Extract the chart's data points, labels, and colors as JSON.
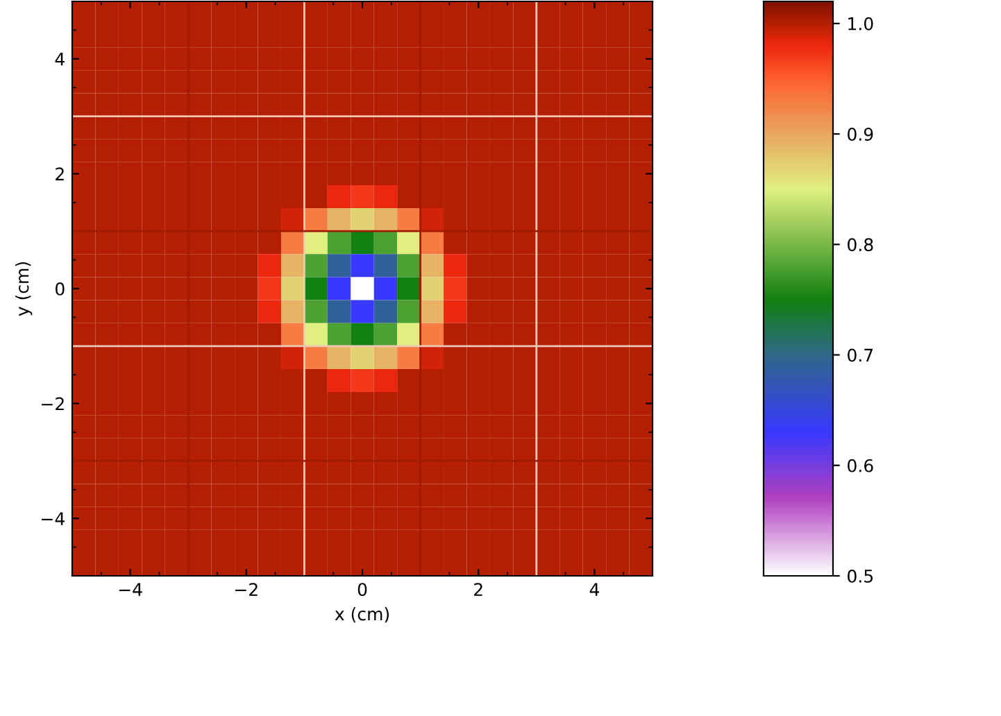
{
  "chart_data": {
    "type": "heatmap",
    "xlabel": "x (cm)",
    "ylabel": "y (cm)",
    "x": [
      -4.8,
      -4.4,
      -4.0,
      -3.6,
      -3.2,
      -2.8,
      -2.4,
      -2.0,
      -1.6,
      -1.2,
      -0.8,
      -0.4,
      0,
      0.4,
      0.8,
      1.2,
      1.6,
      2.0,
      2.4,
      2.8,
      3.2,
      3.6,
      4.0,
      4.4,
      4.8
    ],
    "y": [
      4.8,
      4.4,
      4.0,
      3.6,
      3.2,
      2.8,
      2.4,
      2.0,
      1.6,
      1.2,
      0.8,
      0.4,
      0,
      -0.4,
      -0.8,
      -1.2,
      -1.6,
      -2.0,
      -2.4,
      -2.8,
      -3.2,
      -3.6,
      -4.0,
      -4.4,
      -4.8
    ],
    "xlim": [
      -5,
      5
    ],
    "ylim": [
      -5,
      5
    ],
    "xticks": [
      {
        "value": -4,
        "label": "−4"
      },
      {
        "value": -2,
        "label": "−2"
      },
      0,
      2,
      4
    ],
    "yticks": [
      {
        "value": -4,
        "label": "−4"
      },
      {
        "value": -2,
        "label": "−2"
      },
      0,
      2,
      4
    ],
    "clim": [
      0.5,
      1.02
    ],
    "cticks": [
      0.5,
      0.6,
      0.7,
      0.8,
      0.9,
      {
        "value": 1.0,
        "label": "1.0"
      }
    ],
    "ref_lines": [
      {
        "axis": "x",
        "value": -3,
        "color": "#a01c00"
      },
      {
        "axis": "x",
        "value": -1,
        "color": "#f0c8b8"
      },
      {
        "axis": "x",
        "value": 1,
        "color": "#a01c00"
      },
      {
        "axis": "x",
        "value": 3,
        "color": "#f0c8b8"
      },
      {
        "axis": "y",
        "value": 3,
        "color": "#f0c8b8"
      },
      {
        "axis": "y",
        "value": 1,
        "color": "#a01c00"
      },
      {
        "axis": "y",
        "value": -1,
        "color": "#f0c8b8"
      },
      {
        "axis": "y",
        "value": -3,
        "color": "#a01c00"
      }
    ],
    "cells": [
      [
        1,
        1,
        1,
        1,
        1,
        1,
        1,
        1,
        1,
        1,
        1,
        1,
        1,
        1,
        1,
        1,
        1,
        1,
        1,
        1,
        1,
        1,
        1,
        1,
        1
      ],
      [
        1,
        1,
        1,
        1,
        1,
        1,
        1,
        1,
        1,
        1,
        1,
        1,
        1,
        1,
        1,
        1,
        1,
        1,
        1,
        1,
        1,
        1,
        1,
        1,
        1
      ],
      [
        1,
        1,
        1,
        1,
        1,
        1,
        1,
        1,
        1,
        1,
        1,
        1,
        1,
        1,
        1,
        1,
        1,
        1,
        1,
        1,
        1,
        1,
        1,
        1,
        1
      ],
      [
        1,
        1,
        1,
        1,
        1,
        1,
        1,
        1,
        1,
        1,
        1,
        1,
        1,
        1,
        1,
        1,
        1,
        1,
        1,
        1,
        1,
        1,
        1,
        1,
        1
      ],
      [
        1,
        1,
        1,
        1,
        1,
        1,
        1,
        1,
        1,
        1,
        1,
        1,
        1,
        1,
        1,
        1,
        1,
        1,
        1,
        1,
        1,
        1,
        1,
        1,
        1
      ],
      [
        1,
        1,
        1,
        1,
        1,
        1,
        1,
        1,
        1,
        1,
        1,
        1,
        1,
        1,
        1,
        1,
        1,
        1,
        1,
        1,
        1,
        1,
        1,
        1,
        1
      ],
      [
        1,
        1,
        1,
        1,
        1,
        1,
        1,
        1,
        1,
        1,
        1,
        1,
        1,
        1,
        1,
        1,
        1,
        1,
        1,
        1,
        1,
        1,
        1,
        1,
        1
      ],
      [
        1,
        1,
        1,
        1,
        1,
        1,
        1,
        1,
        1,
        1,
        1,
        1,
        1,
        1,
        1,
        1,
        1,
        1,
        1,
        1,
        1,
        1,
        1,
        1,
        1
      ],
      [
        1,
        1,
        1,
        1,
        1,
        1,
        1,
        1,
        1,
        1,
        1,
        0.98,
        0.97,
        0.98,
        1,
        1,
        1,
        1,
        1,
        1,
        1,
        1,
        1,
        1,
        1
      ],
      [
        1,
        1,
        1,
        1,
        1,
        1,
        1,
        1,
        1,
        0.99,
        0.93,
        0.89,
        0.87,
        0.89,
        0.93,
        0.99,
        1,
        1,
        1,
        1,
        1,
        1,
        1,
        1,
        1
      ],
      [
        1,
        1,
        1,
        1,
        1,
        1,
        1,
        1,
        1,
        0.93,
        0.85,
        0.78,
        0.75,
        0.78,
        0.85,
        0.93,
        1,
        1,
        1,
        1,
        1,
        1,
        1,
        1,
        1
      ],
      [
        1,
        1,
        1,
        1,
        1,
        1,
        1,
        1,
        0.98,
        0.89,
        0.78,
        0.69,
        0.63,
        0.69,
        0.78,
        0.89,
        0.98,
        1,
        1,
        1,
        1,
        1,
        1,
        1,
        1
      ],
      [
        1,
        1,
        1,
        1,
        1,
        1,
        1,
        1,
        0.97,
        0.87,
        0.75,
        0.63,
        0.5,
        0.63,
        0.75,
        0.87,
        0.97,
        1,
        1,
        1,
        1,
        1,
        1,
        1,
        1
      ],
      [
        1,
        1,
        1,
        1,
        1,
        1,
        1,
        1,
        0.98,
        0.89,
        0.78,
        0.69,
        0.63,
        0.69,
        0.78,
        0.89,
        0.98,
        1,
        1,
        1,
        1,
        1,
        1,
        1,
        1
      ],
      [
        1,
        1,
        1,
        1,
        1,
        1,
        1,
        1,
        1,
        0.93,
        0.85,
        0.78,
        0.75,
        0.78,
        0.85,
        0.93,
        1,
        1,
        1,
        1,
        1,
        1,
        1,
        1,
        1
      ],
      [
        1,
        1,
        1,
        1,
        1,
        1,
        1,
        1,
        1,
        0.99,
        0.93,
        0.89,
        0.87,
        0.89,
        0.93,
        0.99,
        1,
        1,
        1,
        1,
        1,
        1,
        1,
        1,
        1
      ],
      [
        1,
        1,
        1,
        1,
        1,
        1,
        1,
        1,
        1,
        1,
        1,
        0.98,
        0.97,
        0.98,
        1,
        1,
        1,
        1,
        1,
        1,
        1,
        1,
        1,
        1,
        1
      ],
      [
        1,
        1,
        1,
        1,
        1,
        1,
        1,
        1,
        1,
        1,
        1,
        1,
        1,
        1,
        1,
        1,
        1,
        1,
        1,
        1,
        1,
        1,
        1,
        1,
        1
      ],
      [
        1,
        1,
        1,
        1,
        1,
        1,
        1,
        1,
        1,
        1,
        1,
        1,
        1,
        1,
        1,
        1,
        1,
        1,
        1,
        1,
        1,
        1,
        1,
        1,
        1
      ],
      [
        1,
        1,
        1,
        1,
        1,
        1,
        1,
        1,
        1,
        1,
        1,
        1,
        1,
        1,
        1,
        1,
        1,
        1,
        1,
        1,
        1,
        1,
        1,
        1,
        1
      ],
      [
        1,
        1,
        1,
        1,
        1,
        1,
        1,
        1,
        1,
        1,
        1,
        1,
        1,
        1,
        1,
        1,
        1,
        1,
        1,
        1,
        1,
        1,
        1,
        1,
        1
      ],
      [
        1,
        1,
        1,
        1,
        1,
        1,
        1,
        1,
        1,
        1,
        1,
        1,
        1,
        1,
        1,
        1,
        1,
        1,
        1,
        1,
        1,
        1,
        1,
        1,
        1
      ],
      [
        1,
        1,
        1,
        1,
        1,
        1,
        1,
        1,
        1,
        1,
        1,
        1,
        1,
        1,
        1,
        1,
        1,
        1,
        1,
        1,
        1,
        1,
        1,
        1,
        1
      ],
      [
        1,
        1,
        1,
        1,
        1,
        1,
        1,
        1,
        1,
        1,
        1,
        1,
        1,
        1,
        1,
        1,
        1,
        1,
        1,
        1,
        1,
        1,
        1,
        1,
        1
      ],
      [
        1,
        1,
        1,
        1,
        1,
        1,
        1,
        1,
        1,
        1,
        1,
        1,
        1,
        1,
        1,
        1,
        1,
        1,
        1,
        1,
        1,
        1,
        1,
        1,
        1
      ]
    ]
  }
}
